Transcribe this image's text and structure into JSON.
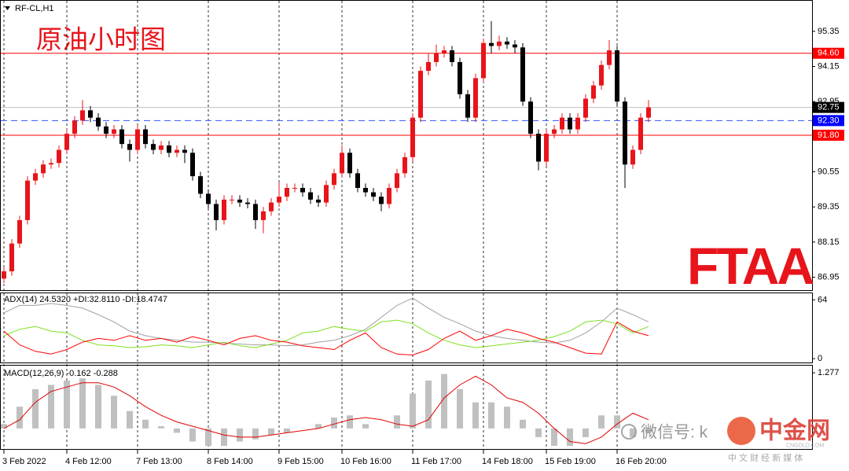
{
  "chart_data": [
    {
      "type": "candlestick",
      "title": "RF-CL,H1",
      "annotation": "原油小时图",
      "logo": "FTAA",
      "up_color": "#e8141b",
      "down_color": "#000000",
      "open": [
        86.9,
        87.15,
        88.1,
        88.9,
        90.25,
        90.5,
        90.8,
        90.85,
        91.3,
        91.85,
        92.3,
        92.65,
        92.4,
        92.1,
        91.85,
        92.0,
        91.5,
        91.3,
        92.0,
        91.5,
        91.3,
        91.45,
        91.2,
        91.3,
        91.2,
        90.4,
        89.8,
        89.45,
        88.9,
        89.6,
        89.6,
        89.5,
        89.45,
        88.9,
        89.2,
        89.5,
        89.7,
        90.0,
        90.0,
        89.85,
        89.6,
        89.5,
        90.1,
        90.5,
        91.2,
        90.5,
        90.0,
        89.85,
        89.7,
        89.45,
        90.0,
        90.5,
        91.05,
        92.4,
        94.0,
        94.3,
        94.6,
        94.7,
        94.3,
        93.2,
        92.4,
        93.75,
        94.95,
        94.85,
        95.0,
        94.9,
        94.8,
        92.95,
        91.85,
        90.9,
        91.85,
        92.0,
        92.4,
        92.0,
        92.4,
        93.05,
        93.5,
        94.2,
        94.7,
        92.95,
        90.8,
        91.3,
        92.4
      ],
      "high": [
        87.3,
        88.25,
        89.05,
        90.4,
        90.65,
        90.95,
        91.0,
        91.45,
        92.0,
        92.45,
        93.0,
        92.8,
        92.55,
        92.25,
        92.15,
        92.15,
        91.65,
        92.15,
        92.15,
        91.65,
        91.6,
        91.6,
        91.45,
        91.45,
        91.35,
        90.55,
        89.95,
        89.6,
        89.75,
        89.75,
        89.75,
        89.65,
        89.6,
        89.35,
        89.65,
        90.2,
        90.15,
        90.15,
        90.15,
        90.0,
        89.75,
        90.25,
        90.65,
        91.45,
        91.35,
        90.65,
        90.15,
        90.0,
        89.85,
        90.15,
        90.65,
        91.2,
        92.55,
        94.15,
        94.6,
        94.9,
        94.85,
        94.85,
        94.45,
        93.35,
        93.9,
        95.1,
        95.7,
        95.2,
        95.15,
        95.05,
        94.95,
        93.1,
        92.0,
        92.0,
        92.15,
        92.55,
        92.55,
        92.55,
        93.2,
        93.65,
        94.35,
        95.05,
        94.85,
        93.1,
        91.45,
        92.55,
        93.0
      ],
      "low": [
        86.75,
        87.0,
        87.95,
        88.75,
        90.1,
        90.35,
        90.65,
        90.7,
        91.15,
        91.7,
        92.15,
        92.25,
        91.95,
        91.7,
        91.7,
        91.35,
        90.9,
        91.15,
        91.35,
        91.15,
        91.15,
        91.05,
        91.05,
        90.85,
        90.25,
        89.65,
        89.3,
        88.55,
        88.75,
        89.45,
        89.35,
        89.3,
        88.6,
        88.45,
        89.05,
        89.35,
        89.55,
        89.85,
        89.7,
        89.45,
        89.35,
        89.35,
        89.95,
        90.35,
        90.35,
        89.85,
        89.7,
        89.55,
        89.2,
        89.3,
        89.85,
        90.35,
        90.9,
        92.25,
        93.85,
        94.15,
        94.45,
        94.15,
        93.05,
        92.25,
        92.25,
        93.6,
        94.6,
        94.7,
        94.75,
        94.6,
        92.8,
        91.7,
        90.6,
        90.75,
        91.7,
        91.85,
        91.85,
        91.85,
        92.25,
        92.9,
        93.35,
        94.05,
        92.8,
        90.0,
        90.65,
        91.15,
        92.25
      ],
      "close": [
        87.15,
        88.1,
        88.9,
        90.25,
        90.5,
        90.8,
        90.85,
        91.3,
        91.85,
        92.3,
        92.65,
        92.4,
        92.1,
        91.85,
        92.0,
        91.5,
        91.3,
        92.0,
        91.5,
        91.3,
        91.45,
        91.2,
        91.3,
        91.2,
        90.4,
        89.8,
        89.45,
        88.9,
        89.6,
        89.6,
        89.5,
        89.45,
        88.9,
        89.2,
        89.5,
        89.7,
        90.0,
        90.0,
        89.85,
        89.6,
        89.5,
        90.1,
        90.5,
        91.2,
        90.5,
        90.0,
        89.85,
        89.7,
        89.45,
        90.0,
        90.5,
        91.05,
        92.4,
        94.0,
        94.3,
        94.6,
        94.7,
        94.3,
        93.2,
        92.4,
        93.75,
        94.95,
        94.85,
        95.0,
        94.9,
        94.8,
        92.95,
        91.85,
        90.9,
        91.85,
        92.0,
        92.4,
        92.0,
        92.4,
        93.05,
        93.5,
        94.2,
        94.7,
        92.95,
        90.8,
        91.3,
        92.4,
        92.75
      ],
      "xlim": [
        -0.5,
        102.8
      ],
      "xticks": [
        {
          "value": 0,
          "label": "3 Feb 2022"
        },
        {
          "value": 8,
          "label": "4 Feb 12:00"
        },
        {
          "value": 17,
          "label": "7 Feb 13:00"
        },
        {
          "value": 26,
          "label": "8 Feb 14:00"
        },
        {
          "value": 35,
          "label": "9 Feb 15:00"
        },
        {
          "value": 43,
          "label": "10 Feb 16:00"
        },
        {
          "value": 52,
          "label": "11 Feb 17:00"
        },
        {
          "value": 61,
          "label": "14 Feb 18:00"
        },
        {
          "value": 69,
          "label": "15 Feb 19:00"
        },
        {
          "value": 78,
          "label": "16 Feb 20:00"
        }
      ],
      "xgrid": true,
      "ylim": [
        86.48,
        96.42
      ],
      "yticks": [
        95.35,
        94.15,
        92.95,
        90.55,
        89.35,
        88.15,
        86.95
      ],
      "levels": [
        {
          "value": 94.6,
          "label": "94.60",
          "color": "#ff0000",
          "line_color": "#ff0000",
          "dashed": false
        },
        {
          "value": 92.75,
          "label": "92.75",
          "color": "#000000",
          "line_color": "#c0c0c0",
          "dashed": false
        },
        {
          "value": 92.3,
          "label": "92.30",
          "color": "#0000ff",
          "line_color": "#3355ff",
          "dashed": true
        },
        {
          "value": 91.8,
          "label": "91.80",
          "color": "#ff0000",
          "line_color": "#ff0000",
          "dashed": false
        }
      ]
    },
    {
      "type": "line",
      "title": "ADX(14) 24.5320 +DI:32.8110 -DI:18.4747",
      "x": [
        0,
        2,
        4,
        6,
        8,
        10,
        12,
        14,
        16,
        18,
        20,
        22,
        24,
        26,
        28,
        30,
        32,
        34,
        36,
        38,
        40,
        42,
        44,
        46,
        48,
        50,
        52,
        54,
        56,
        58,
        60,
        62,
        64,
        66,
        68,
        70,
        72,
        74,
        76,
        78,
        80,
        82
      ],
      "series": [
        {
          "color": "#a0a0a0",
          "values": [
            50,
            58,
            58,
            60,
            58,
            55,
            48,
            40,
            30,
            25,
            22,
            20,
            18,
            18,
            17,
            16,
            15,
            15,
            14,
            15,
            18,
            20,
            25,
            32,
            45,
            58,
            66,
            55,
            45,
            38,
            30,
            25,
            22,
            20,
            18,
            17,
            20,
            28,
            40,
            55,
            48,
            40
          ]
        },
        {
          "color": "#7fe020",
          "values": [
            25,
            32,
            35,
            30,
            28,
            20,
            15,
            14,
            12,
            13,
            15,
            14,
            12,
            15,
            18,
            14,
            12,
            16,
            20,
            28,
            30,
            35,
            32,
            30,
            40,
            42,
            38,
            28,
            20,
            15,
            12,
            14,
            16,
            18,
            20,
            24,
            30,
            40,
            42,
            38,
            28,
            35
          ]
        },
        {
          "color": "#ff0000",
          "values": [
            30,
            15,
            8,
            5,
            10,
            18,
            22,
            20,
            25,
            20,
            22,
            18,
            24,
            20,
            15,
            22,
            25,
            20,
            18,
            14,
            12,
            10,
            20,
            28,
            12,
            5,
            4,
            10,
            22,
            30,
            20,
            25,
            32,
            28,
            22,
            18,
            12,
            6,
            5,
            40,
            30,
            25
          ]
        }
      ],
      "ylim": [
        -5,
        72
      ],
      "yticks": [
        64,
        0
      ]
    },
    {
      "type": "bar",
      "title": "MACD(12,26,9) -0.162 -0.288",
      "x": [
        0,
        2,
        4,
        6,
        8,
        10,
        12,
        14,
        16,
        18,
        20,
        22,
        24,
        26,
        28,
        30,
        32,
        34,
        36,
        38,
        40,
        42,
        44,
        46,
        48,
        50,
        52,
        54,
        56,
        58,
        60,
        62,
        64,
        66,
        68,
        70,
        72,
        74,
        76,
        78,
        80,
        82
      ],
      "color": "#c0c0c0",
      "values": [
        0.1,
        0.5,
        0.9,
        1.0,
        1.1,
        1.15,
        1.0,
        0.75,
        0.4,
        0.2,
        0.05,
        -0.1,
        -0.3,
        -0.4,
        -0.4,
        -0.3,
        -0.25,
        -0.15,
        -0.1,
        0.0,
        0.1,
        0.25,
        0.3,
        0.1,
        0.0,
        0.3,
        0.8,
        1.1,
        1.25,
        0.9,
        0.6,
        0.6,
        0.5,
        0.2,
        -0.2,
        -0.4,
        -0.4,
        -0.2,
        0.3,
        0.3,
        -0.2,
        -0.1
      ],
      "series": [
        {
          "color": "#e00000",
          "values": [
            0.0,
            0.2,
            0.6,
            0.85,
            0.95,
            1.05,
            1.05,
            0.95,
            0.75,
            0.5,
            0.3,
            0.15,
            0.05,
            -0.05,
            -0.15,
            -0.2,
            -0.2,
            -0.15,
            -0.1,
            -0.05,
            0.0,
            0.1,
            0.2,
            0.25,
            0.2,
            0.1,
            0.05,
            0.2,
            0.7,
            1.0,
            1.2,
            1.0,
            0.7,
            0.6,
            0.35,
            0.0,
            -0.3,
            -0.35,
            -0.2,
            0.1,
            0.35,
            0.2
          ]
        }
      ],
      "ylim": [
        -0.49,
        1.46
      ],
      "yticks": [
        1.277
      ]
    }
  ],
  "watermark": {
    "wechat": "微信号: k",
    "brand": "中金网",
    "site": "CNGOLD.COM",
    "tagline": "中 文 财 经 新 媒 体"
  }
}
